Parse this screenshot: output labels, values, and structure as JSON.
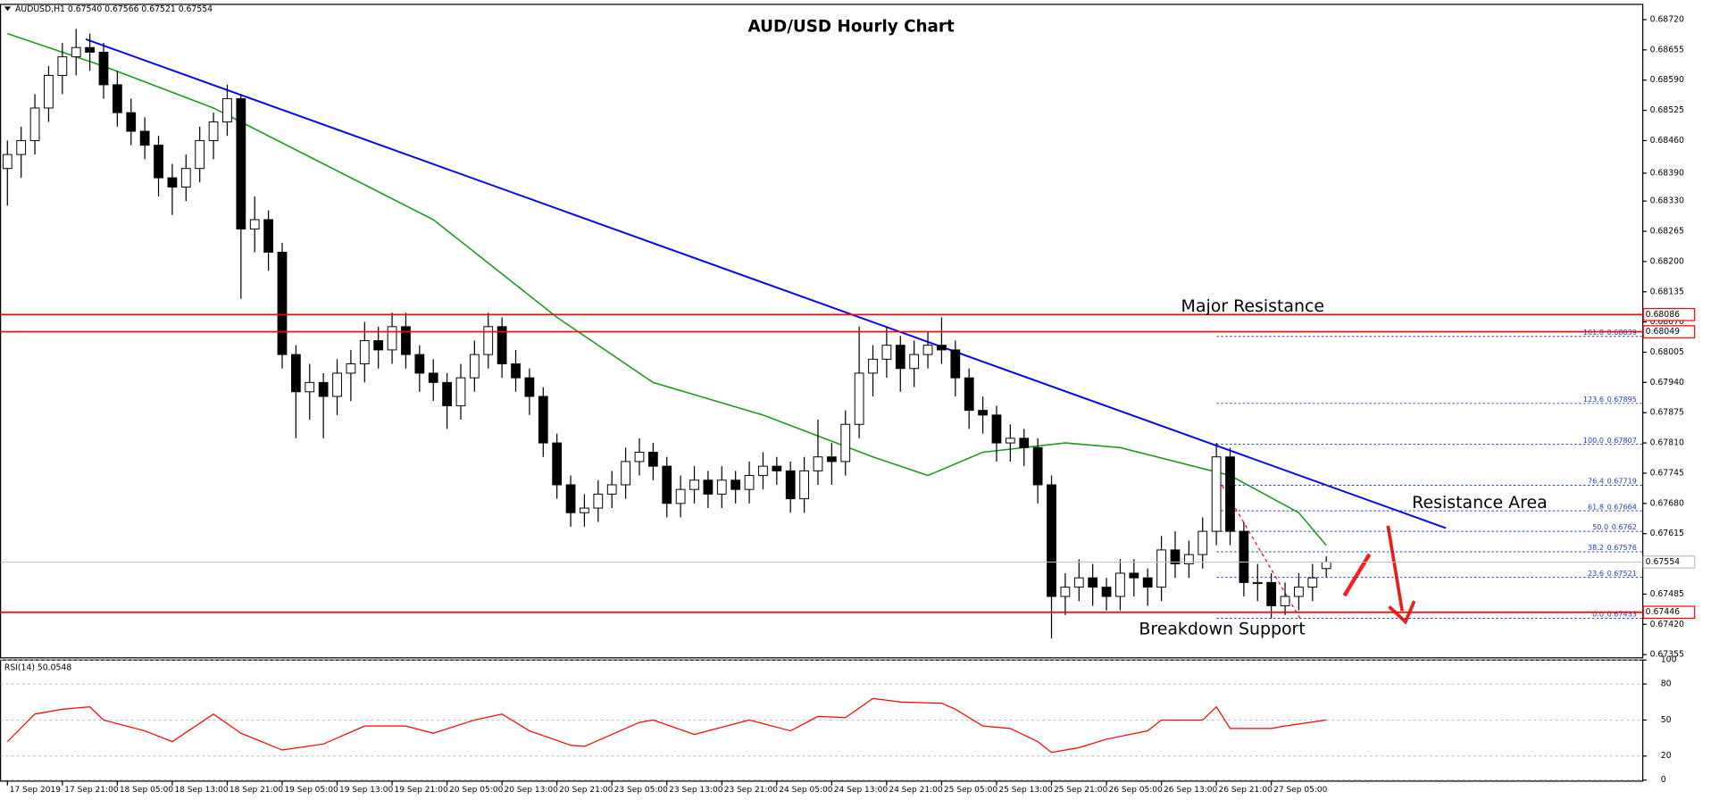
{
  "chart_data": [
    {
      "type": "candlestick",
      "title": "AUD/USD Hourly Chart",
      "header": "AUDUSD,H1 0.67540 0.67566 0.67521 0.67554",
      "color_up": "#ffffff",
      "color_down": "#000000",
      "xlim": [
        -0.5,
        119
      ],
      "ylim": [
        0.67348,
        0.6875
      ],
      "yticks": [
        {
          "value": 0.6872,
          "label": "0.68720"
        },
        {
          "value": 0.68655,
          "label": "0.68655"
        },
        {
          "value": 0.6859,
          "label": "0.68590"
        },
        {
          "value": 0.68525,
          "label": "0.68525"
        },
        {
          "value": 0.6846,
          "label": "0.68460"
        },
        {
          "value": 0.6839,
          "label": "0.68390"
        },
        {
          "value": 0.6833,
          "label": "0.68330"
        },
        {
          "value": 0.68265,
          "label": "0.68265"
        },
        {
          "value": 0.682,
          "label": "0.68200"
        },
        {
          "value": 0.68135,
          "label": "0.68135"
        },
        {
          "value": 0.6807,
          "label": "0.68070"
        },
        {
          "value": 0.68005,
          "label": "0.68005"
        },
        {
          "value": 0.6794,
          "label": "0.67940"
        },
        {
          "value": 0.67875,
          "label": "0.67875"
        },
        {
          "value": 0.6781,
          "label": "0.67810"
        },
        {
          "value": 0.67745,
          "label": "0.67745"
        },
        {
          "value": 0.6768,
          "label": "0.67680"
        },
        {
          "value": 0.67615,
          "label": "0.67615"
        },
        {
          "value": 0.6755,
          "label": "0.67550"
        },
        {
          "value": 0.67485,
          "label": "0.67485"
        },
        {
          "value": 0.6742,
          "label": "0.67420"
        },
        {
          "value": 0.67355,
          "label": "0.67355"
        }
      ],
      "xticks": [
        {
          "value": 0,
          "label": "17 Sep 2019"
        },
        {
          "value": 4,
          "label": "17 Sep 21:00"
        },
        {
          "value": 8,
          "label": "18 Sep 05:00"
        },
        {
          "value": 12,
          "label": "18 Sep 13:00"
        },
        {
          "value": 16,
          "label": "18 Sep 21:00"
        },
        {
          "value": 20,
          "label": "19 Sep 05:00"
        },
        {
          "value": 24,
          "label": "19 Sep 13:00"
        },
        {
          "value": 28,
          "label": "19 Sep 21:00"
        },
        {
          "value": 32,
          "label": "20 Sep 05:00"
        },
        {
          "value": 36,
          "label": "20 Sep 13:00"
        },
        {
          "value": 40,
          "label": "20 Sep 21:00"
        },
        {
          "value": 44,
          "label": "23 Sep 05:00"
        },
        {
          "value": 48,
          "label": "23 Sep 13:00"
        },
        {
          "value": 52,
          "label": "23 Sep 21:00"
        },
        {
          "value": 56,
          "label": "24 Sep 05:00"
        },
        {
          "value": 60,
          "label": "24 Sep 13:00"
        },
        {
          "value": 64,
          "label": "24 Sep 21:00"
        },
        {
          "value": 68,
          "label": "25 Sep 05:00"
        },
        {
          "value": 72,
          "label": "25 Sep 13:00"
        },
        {
          "value": 76,
          "label": "25 Sep 21:00"
        },
        {
          "value": 80,
          "label": "26 Sep 05:00"
        },
        {
          "value": 84,
          "label": "26 Sep 13:00"
        },
        {
          "value": 88,
          "label": "26 Sep 21:00"
        },
        {
          "value": 92,
          "label": "27 Sep 05:00"
        }
      ],
      "ohlc": [
        [
          0.684,
          0.6846,
          0.6832,
          0.6843
        ],
        [
          0.6843,
          0.6849,
          0.6838,
          0.6846
        ],
        [
          0.6846,
          0.6856,
          0.6843,
          0.6853
        ],
        [
          0.6853,
          0.6862,
          0.685,
          0.686
        ],
        [
          0.686,
          0.6867,
          0.6856,
          0.6864
        ],
        [
          0.6864,
          0.687,
          0.686,
          0.6866
        ],
        [
          0.6866,
          0.6869,
          0.6861,
          0.6865
        ],
        [
          0.6865,
          0.6867,
          0.6855,
          0.6858
        ],
        [
          0.6858,
          0.6861,
          0.6849,
          0.6852
        ],
        [
          0.6852,
          0.6855,
          0.6845,
          0.6848
        ],
        [
          0.6848,
          0.6851,
          0.6842,
          0.6845
        ],
        [
          0.6845,
          0.6847,
          0.6834,
          0.6838
        ],
        [
          0.6838,
          0.6841,
          0.683,
          0.6836
        ],
        [
          0.6836,
          0.6843,
          0.6833,
          0.684
        ],
        [
          0.684,
          0.6849,
          0.6837,
          0.6846
        ],
        [
          0.6846,
          0.6852,
          0.6842,
          0.685
        ],
        [
          0.685,
          0.6858,
          0.6847,
          0.6855
        ],
        [
          0.6855,
          0.6856,
          0.6812,
          0.6827
        ],
        [
          0.6827,
          0.6834,
          0.6822,
          0.6829
        ],
        [
          0.6829,
          0.6831,
          0.6818,
          0.6822
        ],
        [
          0.6822,
          0.6824,
          0.6797,
          0.68
        ],
        [
          0.68,
          0.6802,
          0.6782,
          0.6792
        ],
        [
          0.6792,
          0.6798,
          0.6786,
          0.6794
        ],
        [
          0.6794,
          0.6796,
          0.6782,
          0.6791
        ],
        [
          0.6791,
          0.6799,
          0.6787,
          0.6796
        ],
        [
          0.6796,
          0.6801,
          0.679,
          0.6798
        ],
        [
          0.6798,
          0.6807,
          0.6794,
          0.6803
        ],
        [
          0.6803,
          0.6806,
          0.6797,
          0.6801
        ],
        [
          0.6801,
          0.6809,
          0.6798,
          0.6806
        ],
        [
          0.6806,
          0.6809,
          0.6797,
          0.68
        ],
        [
          0.68,
          0.6802,
          0.6792,
          0.6796
        ],
        [
          0.6796,
          0.6799,
          0.679,
          0.6794
        ],
        [
          0.6794,
          0.6796,
          0.6784,
          0.6789
        ],
        [
          0.6789,
          0.6798,
          0.6786,
          0.6795
        ],
        [
          0.6795,
          0.6803,
          0.6792,
          0.68
        ],
        [
          0.68,
          0.6809,
          0.6797,
          0.6806
        ],
        [
          0.6806,
          0.6808,
          0.6795,
          0.6798
        ],
        [
          0.6798,
          0.6801,
          0.6792,
          0.6795
        ],
        [
          0.6795,
          0.6797,
          0.6787,
          0.6791
        ],
        [
          0.6791,
          0.6793,
          0.6778,
          0.6781
        ],
        [
          0.6781,
          0.6783,
          0.6769,
          0.6772
        ],
        [
          0.6772,
          0.6774,
          0.6763,
          0.6766
        ],
        [
          0.6766,
          0.677,
          0.6763,
          0.6767
        ],
        [
          0.6767,
          0.6773,
          0.6764,
          0.677
        ],
        [
          0.677,
          0.6775,
          0.6767,
          0.6772
        ],
        [
          0.6772,
          0.678,
          0.6769,
          0.6777
        ],
        [
          0.6777,
          0.6782,
          0.6774,
          0.6779
        ],
        [
          0.6779,
          0.6781,
          0.6773,
          0.6776
        ],
        [
          0.6776,
          0.6778,
          0.6765,
          0.6768
        ],
        [
          0.6768,
          0.6774,
          0.6765,
          0.6771
        ],
        [
          0.6771,
          0.6776,
          0.6768,
          0.6773
        ],
        [
          0.6773,
          0.6775,
          0.6767,
          0.677
        ],
        [
          0.677,
          0.6776,
          0.6767,
          0.6773
        ],
        [
          0.6773,
          0.6775,
          0.6768,
          0.6771
        ],
        [
          0.6771,
          0.6777,
          0.6768,
          0.6774
        ],
        [
          0.6774,
          0.6779,
          0.6771,
          0.6776
        ],
        [
          0.6776,
          0.6778,
          0.6772,
          0.6775
        ],
        [
          0.6775,
          0.6777,
          0.6766,
          0.6769
        ],
        [
          0.6769,
          0.6778,
          0.6766,
          0.6775
        ],
        [
          0.6775,
          0.6786,
          0.6772,
          0.6778
        ],
        [
          0.6778,
          0.6781,
          0.6772,
          0.6777
        ],
        [
          0.6777,
          0.6788,
          0.6774,
          0.6785
        ],
        [
          0.6785,
          0.6806,
          0.6782,
          0.6796
        ],
        [
          0.6796,
          0.6802,
          0.6791,
          0.6799
        ],
        [
          0.6799,
          0.6806,
          0.6795,
          0.6802
        ],
        [
          0.6802,
          0.6804,
          0.6792,
          0.6797
        ],
        [
          0.6797,
          0.6803,
          0.6793,
          0.68
        ],
        [
          0.68,
          0.6805,
          0.6797,
          0.6802
        ],
        [
          0.6802,
          0.6808,
          0.6798,
          0.6801
        ],
        [
          0.6801,
          0.6803,
          0.6791,
          0.6795
        ],
        [
          0.6795,
          0.6797,
          0.6784,
          0.6788
        ],
        [
          0.6788,
          0.6791,
          0.6783,
          0.6787
        ],
        [
          0.6787,
          0.6789,
          0.6777,
          0.6781
        ],
        [
          0.6781,
          0.6785,
          0.6777,
          0.6782
        ],
        [
          0.6782,
          0.6784,
          0.6776,
          0.678
        ],
        [
          0.678,
          0.6782,
          0.6768,
          0.6772
        ],
        [
          0.6772,
          0.6774,
          0.6739,
          0.6748
        ],
        [
          0.6748,
          0.6753,
          0.6744,
          0.675
        ],
        [
          0.675,
          0.6756,
          0.6747,
          0.6752
        ],
        [
          0.6752,
          0.6755,
          0.6746,
          0.675
        ],
        [
          0.675,
          0.6752,
          0.6745,
          0.6748
        ],
        [
          0.6748,
          0.6756,
          0.6745,
          0.6753
        ],
        [
          0.6753,
          0.6756,
          0.6748,
          0.6752
        ],
        [
          0.6752,
          0.6754,
          0.6746,
          0.675
        ],
        [
          0.675,
          0.6761,
          0.6747,
          0.6758
        ],
        [
          0.6758,
          0.6762,
          0.6752,
          0.6755
        ],
        [
          0.6755,
          0.676,
          0.6752,
          0.6757
        ],
        [
          0.6757,
          0.6765,
          0.6754,
          0.6762
        ],
        [
          0.6762,
          0.6781,
          0.6759,
          0.6778
        ],
        [
          0.6778,
          0.678,
          0.6759,
          0.6762
        ],
        [
          0.6762,
          0.6764,
          0.6748,
          0.6751
        ],
        [
          0.6751,
          0.6755,
          0.6747,
          0.6751
        ],
        [
          0.6751,
          0.6753,
          0.67433,
          0.6746
        ],
        [
          0.6746,
          0.6751,
          0.6744,
          0.6748
        ],
        [
          0.6748,
          0.6753,
          0.6745,
          0.675
        ],
        [
          0.675,
          0.6755,
          0.6747,
          0.6752
        ],
        [
          0.6754,
          0.67566,
          0.67521,
          0.67554
        ]
      ],
      "ma": {
        "color": "#1e9a1e",
        "x": [
          0,
          7,
          15,
          23,
          31,
          40,
          47,
          55,
          63,
          67,
          71,
          77,
          81,
          89,
          94,
          96
        ],
        "values": [
          0.6869,
          0.6862,
          0.6853,
          0.6841,
          0.6829,
          0.6808,
          0.6794,
          0.6787,
          0.6778,
          0.6774,
          0.6779,
          0.6781,
          0.678,
          0.6774,
          0.6766,
          0.6759
        ]
      },
      "trendline": {
        "color": "#0000ff",
        "x": [
          5.7,
          104.7
        ],
        "values": [
          0.68678,
          0.67627
        ]
      },
      "hlines": [
        {
          "value": 0.68086,
          "color": "#ff0000"
        },
        {
          "value": 0.68049,
          "color": "#ff0000"
        },
        {
          "value": 0.67446,
          "color": "#ff0000"
        },
        {
          "value": 0.67554,
          "color": "#c0c0c0"
        }
      ],
      "fib": {
        "color": "#2040c0",
        "levels": [
          {
            "ratio": "161.8",
            "price": 0.68039
          },
          {
            "ratio": "123.6",
            "price": 0.67895
          },
          {
            "ratio": "100.0",
            "price": 0.67807
          },
          {
            "ratio": "76.4",
            "price": 0.67719
          },
          {
            "ratio": "61.8",
            "price": 0.67664
          },
          {
            "ratio": "50.0",
            "price": 0.6762
          },
          {
            "ratio": "38.2",
            "price": 0.67576
          },
          {
            "ratio": "23.6",
            "price": 0.67521
          },
          {
            "ratio": "0.0",
            "price": 0.67433
          }
        ]
      },
      "annotations": [
        "Major Resistance",
        "Resistance Area",
        "Breakdown Support"
      ],
      "annotation_color": "#e8201a"
    },
    {
      "type": "line",
      "label": "RSI(14) 50.0548",
      "color": "#ff0000",
      "grid": true,
      "xlim": [
        -0.5,
        119
      ],
      "ylim": [
        0,
        100
      ],
      "yticks": [
        100,
        80,
        50,
        20,
        0
      ],
      "x": [
        0,
        2,
        4,
        6,
        7,
        10,
        12,
        15,
        17,
        20,
        23,
        26,
        29,
        31,
        34,
        36,
        38,
        41,
        42,
        46,
        47,
        50,
        54,
        57,
        59,
        61,
        63,
        65,
        68,
        69,
        71,
        73,
        75,
        76,
        78,
        80,
        83,
        84,
        87,
        88,
        89,
        92,
        93,
        96
      ],
      "values": [
        32,
        55,
        59,
        61,
        50,
        41,
        32,
        55,
        39,
        25,
        30,
        45,
        45,
        39,
        50,
        55,
        41,
        29,
        28,
        48,
        50,
        38,
        50,
        41,
        53,
        52,
        68,
        65,
        64,
        59,
        45,
        43,
        32,
        23,
        27,
        34,
        41,
        50,
        50,
        61,
        43,
        43,
        45,
        50.0548
      ]
    }
  ]
}
